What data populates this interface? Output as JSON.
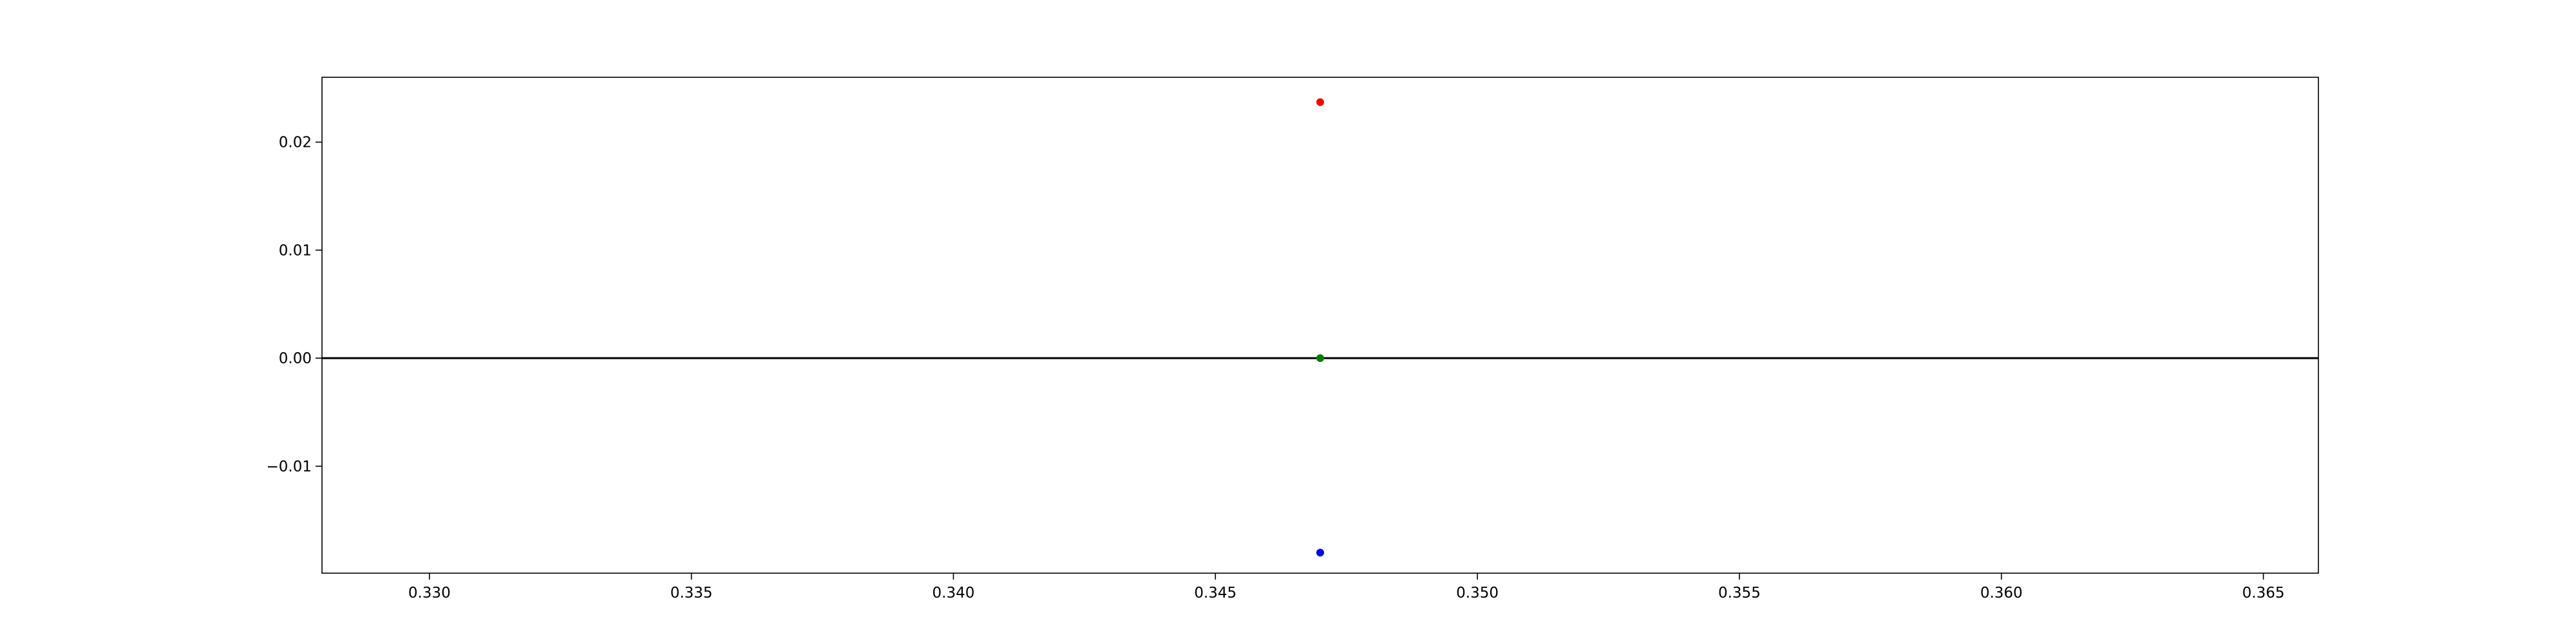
{
  "chart_data": {
    "type": "scatter",
    "title": "",
    "xlabel": "",
    "ylabel": "",
    "xlim": [
      0.32795,
      0.36605
    ],
    "ylim": [
      -0.0199,
      0.026
    ],
    "x_ticks": [
      {
        "value": 0.33,
        "label": "0.330"
      },
      {
        "value": 0.335,
        "label": "0.335"
      },
      {
        "value": 0.34,
        "label": "0.340"
      },
      {
        "value": 0.345,
        "label": "0.345"
      },
      {
        "value": 0.35,
        "label": "0.350"
      },
      {
        "value": 0.355,
        "label": "0.355"
      },
      {
        "value": 0.36,
        "label": "0.360"
      },
      {
        "value": 0.365,
        "label": "0.365"
      }
    ],
    "y_ticks": [
      {
        "value": 0.02,
        "label": "0.02"
      },
      {
        "value": 0.01,
        "label": "0.01"
      },
      {
        "value": 0.0,
        "label": "0.00"
      },
      {
        "value": -0.01,
        "label": "−0.01"
      }
    ],
    "reference_lines": [
      {
        "orientation": "horizontal",
        "y": 0.0,
        "color": "#000000"
      }
    ],
    "points": [
      {
        "x": 0.347,
        "y": 0.0237,
        "color": "#ff0000"
      },
      {
        "x": 0.347,
        "y": 0.0,
        "color": "#008000"
      },
      {
        "x": 0.347,
        "y": -0.018,
        "color": "#0000ff"
      }
    ],
    "grid": false,
    "legend": "none"
  }
}
